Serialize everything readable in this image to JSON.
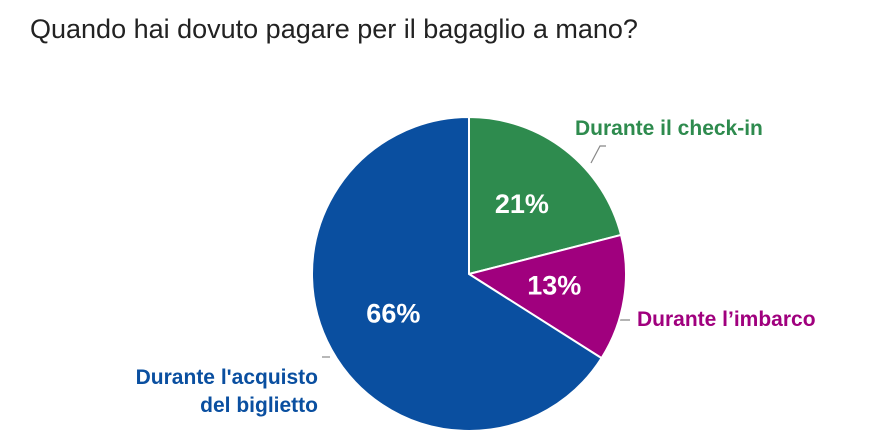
{
  "chart_data": {
    "type": "pie",
    "title": "Quando hai dovuto pagare per il bagaglio a mano?",
    "categories": [
      "Durante il check-in",
      "Durante l’imbarco",
      "Durante l'acquisto del biglietto"
    ],
    "values": [
      21,
      13,
      66
    ],
    "value_labels": [
      "21%",
      "13%",
      "66%"
    ],
    "colors": [
      "#2e8b4e",
      "#a0007e",
      "#0a4fa0"
    ]
  }
}
